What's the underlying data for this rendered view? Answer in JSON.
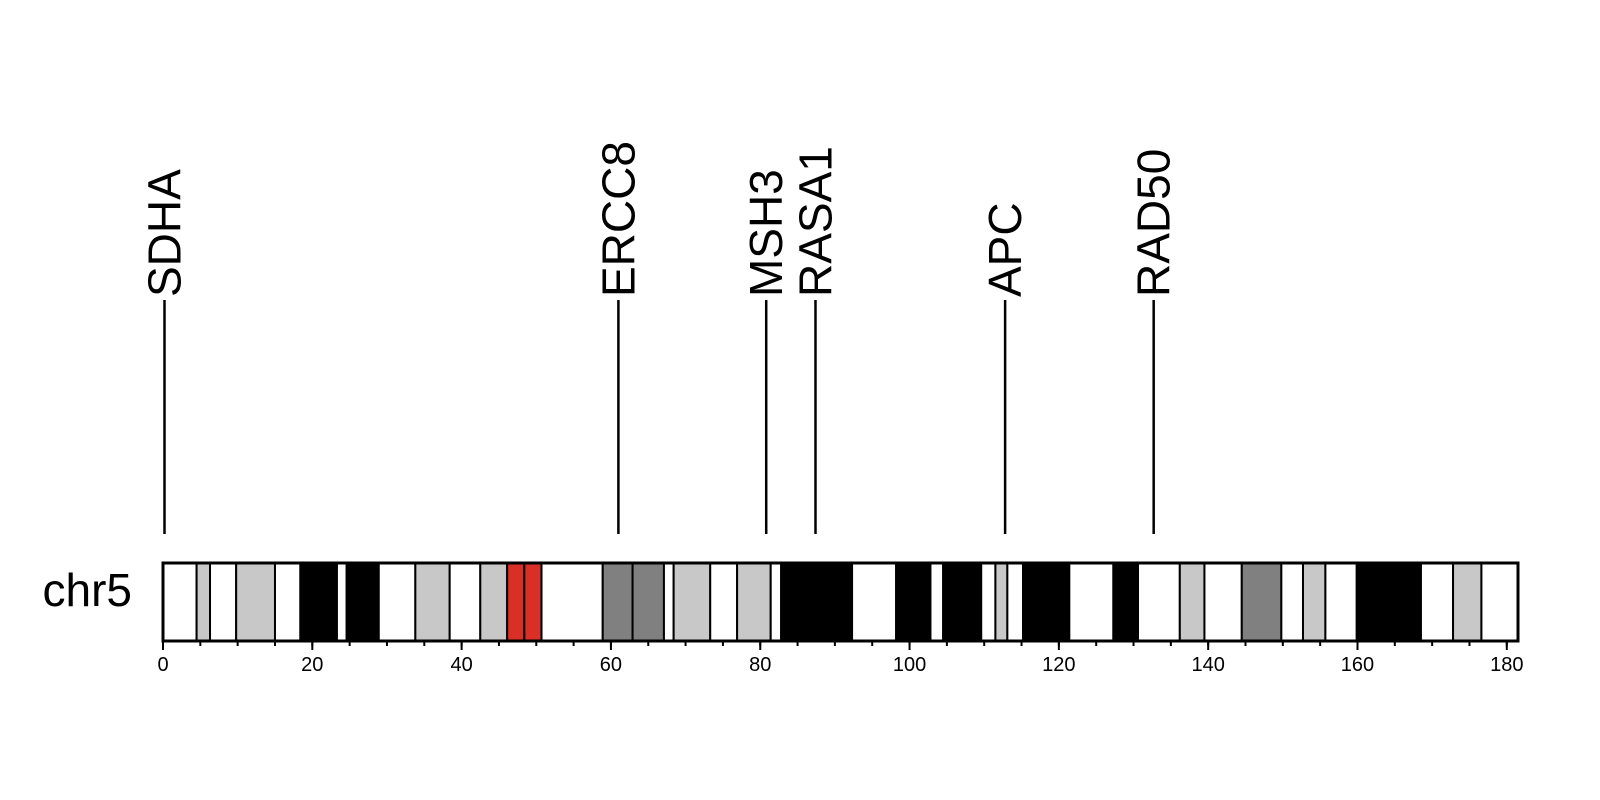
{
  "chart_data": {
    "type": "ideogram",
    "chromosome": "chr5",
    "xlim": [
      0,
      181.5
    ],
    "x_ticks": [
      0,
      20,
      40,
      60,
      80,
      100,
      120,
      140,
      160,
      180
    ],
    "x_tick_labels": [
      "0",
      "20",
      "40",
      "60",
      "80",
      "100",
      "120",
      "140",
      "160",
      "180"
    ],
    "minor_tick_step": 5,
    "genes": [
      {
        "name": "SDHA",
        "position": 0.2
      },
      {
        "name": "ERCC8",
        "position": 61.0
      },
      {
        "name": "MSH3",
        "position": 80.8
      },
      {
        "name": "RASA1",
        "position": 87.4
      },
      {
        "name": "APC",
        "position": 112.8
      },
      {
        "name": "RAD50",
        "position": 132.7
      }
    ],
    "bands": [
      {
        "start": 0,
        "end": 4.5,
        "stain": "gneg"
      },
      {
        "start": 4.5,
        "end": 6.3,
        "stain": "gpos25"
      },
      {
        "start": 6.3,
        "end": 9.8,
        "stain": "gneg"
      },
      {
        "start": 9.8,
        "end": 15.0,
        "stain": "gpos25"
      },
      {
        "start": 15.0,
        "end": 18.4,
        "stain": "gneg"
      },
      {
        "start": 18.4,
        "end": 23.3,
        "stain": "gpos100"
      },
      {
        "start": 23.3,
        "end": 24.6,
        "stain": "gneg"
      },
      {
        "start": 24.6,
        "end": 28.9,
        "stain": "gpos100"
      },
      {
        "start": 28.9,
        "end": 33.8,
        "stain": "gneg"
      },
      {
        "start": 33.8,
        "end": 38.4,
        "stain": "gpos25"
      },
      {
        "start": 38.4,
        "end": 42.5,
        "stain": "gneg"
      },
      {
        "start": 42.5,
        "end": 46.1,
        "stain": "gpos25"
      },
      {
        "start": 46.1,
        "end": 48.4,
        "stain": "acen"
      },
      {
        "start": 48.4,
        "end": 50.7,
        "stain": "acen"
      },
      {
        "start": 50.7,
        "end": 58.9,
        "stain": "gneg"
      },
      {
        "start": 58.9,
        "end": 62.9,
        "stain": "gpos50"
      },
      {
        "start": 62.9,
        "end": 67.1,
        "stain": "gpos50"
      },
      {
        "start": 67.1,
        "end": 68.4,
        "stain": "gneg"
      },
      {
        "start": 68.4,
        "end": 73.3,
        "stain": "gpos25"
      },
      {
        "start": 73.3,
        "end": 76.9,
        "stain": "gneg"
      },
      {
        "start": 76.9,
        "end": 81.4,
        "stain": "gpos25"
      },
      {
        "start": 81.4,
        "end": 82.8,
        "stain": "gneg"
      },
      {
        "start": 82.8,
        "end": 92.3,
        "stain": "gpos100"
      },
      {
        "start": 92.3,
        "end": 98.2,
        "stain": "gneg"
      },
      {
        "start": 98.2,
        "end": 102.8,
        "stain": "gpos100"
      },
      {
        "start": 102.8,
        "end": 104.5,
        "stain": "gneg"
      },
      {
        "start": 104.5,
        "end": 109.6,
        "stain": "gpos100"
      },
      {
        "start": 109.6,
        "end": 111.5,
        "stain": "gneg"
      },
      {
        "start": 111.5,
        "end": 113.1,
        "stain": "gpos25"
      },
      {
        "start": 113.1,
        "end": 115.2,
        "stain": "gneg"
      },
      {
        "start": 115.2,
        "end": 121.4,
        "stain": "gpos100"
      },
      {
        "start": 121.4,
        "end": 127.3,
        "stain": "gneg"
      },
      {
        "start": 127.3,
        "end": 130.6,
        "stain": "gpos100"
      },
      {
        "start": 130.6,
        "end": 136.2,
        "stain": "gneg"
      },
      {
        "start": 136.2,
        "end": 139.5,
        "stain": "gpos25"
      },
      {
        "start": 139.5,
        "end": 144.5,
        "stain": "gneg"
      },
      {
        "start": 144.5,
        "end": 149.8,
        "stain": "gpos50"
      },
      {
        "start": 149.8,
        "end": 152.7,
        "stain": "gneg"
      },
      {
        "start": 152.7,
        "end": 155.7,
        "stain": "gpos25"
      },
      {
        "start": 155.7,
        "end": 159.9,
        "stain": "gneg"
      },
      {
        "start": 159.9,
        "end": 168.5,
        "stain": "gpos100"
      },
      {
        "start": 168.5,
        "end": 172.8,
        "stain": "gneg"
      },
      {
        "start": 172.8,
        "end": 176.6,
        "stain": "gpos25"
      },
      {
        "start": 176.6,
        "end": 181.5,
        "stain": "gneg"
      }
    ],
    "stain_colors": {
      "gneg": "#ffffff",
      "gpos25": "#c8c8c8",
      "gpos50": "#808080",
      "gpos100": "#000000",
      "acen": "#d92f27"
    },
    "grid": false
  }
}
